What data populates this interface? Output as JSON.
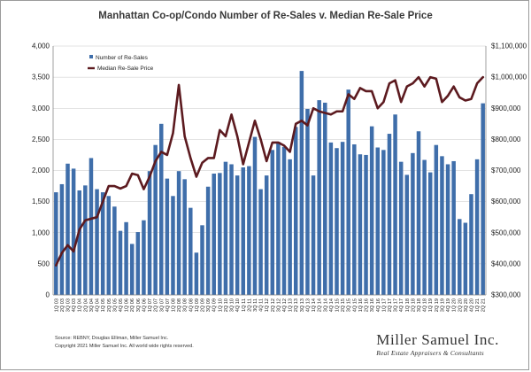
{
  "chart_data": {
    "type": "bar",
    "title": "Manhattan Co-op/Condo Number of Re-Sales v. Median Re-Sale Price",
    "categories": [
      "1Q 03",
      "2Q 03",
      "3Q 03",
      "4Q 03",
      "1Q 04",
      "2Q 04",
      "3Q 04",
      "4Q 04",
      "1Q 05",
      "2Q 05",
      "3Q 05",
      "4Q 05",
      "1Q 06",
      "2Q 06",
      "3Q 06",
      "4Q 06",
      "1Q 07",
      "2Q 07",
      "3Q 07",
      "4Q 07",
      "1Q 08",
      "2Q 08",
      "3Q 08",
      "4Q 08",
      "1Q 09",
      "2Q 09",
      "3Q 09",
      "4Q 09",
      "1Q 10",
      "2Q 10",
      "3Q 10",
      "4Q 10",
      "1Q 11",
      "2Q 11",
      "3Q 11",
      "4Q 11",
      "1Q 12",
      "2Q 12",
      "3Q 12",
      "4Q 12",
      "1Q 13",
      "2Q 13",
      "3Q 13",
      "4Q 13",
      "1Q 14",
      "2Q 14",
      "3Q 14",
      "4Q 14",
      "1Q 15",
      "2Q 15",
      "3Q 15",
      "4Q 15",
      "1Q 16",
      "2Q 16",
      "3Q 16",
      "4Q 16",
      "1Q 17",
      "2Q 17",
      "3Q 17",
      "4Q 17",
      "1Q 18",
      "2Q 18",
      "3Q 18",
      "4Q 18",
      "1Q 19",
      "2Q 19",
      "3Q 19",
      "4Q 19",
      "1Q 20",
      "2Q 20",
      "3Q 20",
      "4Q 20",
      "1Q 21",
      "2Q 21"
    ],
    "series": [
      {
        "name": "Number of Re-Sales",
        "kind": "bar",
        "axis": "left",
        "color": "#3f6eaa",
        "values": [
          1650,
          1780,
          2110,
          2030,
          1680,
          1760,
          2200,
          1700,
          1650,
          1590,
          1420,
          1030,
          1170,
          820,
          1010,
          1200,
          1990,
          2410,
          2750,
          1870,
          1590,
          1990,
          1860,
          1400,
          680,
          1120,
          1740,
          1950,
          1960,
          2140,
          2100,
          1920,
          2050,
          2070,
          2540,
          1700,
          1920,
          2330,
          2460,
          2380,
          2180,
          2700,
          3600,
          2990,
          1920,
          3130,
          3090,
          2450,
          2360,
          2460,
          3300,
          2420,
          2260,
          2250,
          2710,
          2370,
          2330,
          2590,
          2900,
          2140,
          1930,
          2280,
          2630,
          2170,
          1970,
          2410,
          2230,
          2100,
          2150,
          1220,
          1160,
          1620,
          2180,
          3080
        ]
      },
      {
        "name": "Median Re-Sale Price",
        "kind": "line",
        "axis": "right",
        "color": "#5c1a1f",
        "values": [
          395000,
          435000,
          460000,
          440000,
          510000,
          540000,
          545000,
          550000,
          600000,
          650000,
          650000,
          642000,
          650000,
          690000,
          685000,
          640000,
          680000,
          730000,
          760000,
          750000,
          820000,
          975000,
          810000,
          740000,
          680000,
          725000,
          740000,
          740000,
          830000,
          810000,
          880000,
          810000,
          720000,
          790000,
          860000,
          800000,
          730000,
          790000,
          790000,
          780000,
          760000,
          850000,
          860000,
          845000,
          900000,
          890000,
          885000,
          880000,
          890000,
          890000,
          945000,
          930000,
          965000,
          955000,
          955000,
          900000,
          920000,
          980000,
          990000,
          920000,
          970000,
          980000,
          1000000,
          970000,
          1000000,
          995000,
          920000,
          940000,
          970000,
          935000,
          925000,
          930000,
          980000,
          1000000
        ]
      }
    ],
    "y_left": {
      "min": 0,
      "max": 4000,
      "step": 500,
      "ticks": [
        "0",
        "500",
        "1,000",
        "1,500",
        "2,000",
        "2,500",
        "3,000",
        "3,500",
        "4,000"
      ]
    },
    "y_right": {
      "min": 300000,
      "max": 1100000,
      "step": 100000,
      "ticks": [
        "$300,000",
        "$400,000",
        "$500,000",
        "$600,000",
        "$700,000",
        "$800,000",
        "$900,000",
        "$1,000,000",
        "$1,100,000"
      ]
    },
    "legend_position": "top-left",
    "grid": true
  },
  "footer": {
    "source": "Source: REBNY, Douglas Elliman, Miller Samuel Inc.",
    "copyright": "Copyright 2021 Miller Samuel Inc.  All world wide rights reserved."
  },
  "brand": {
    "name": "Miller Samuel Inc.",
    "tagline": "Real Estate Appraisers & Consultants"
  }
}
